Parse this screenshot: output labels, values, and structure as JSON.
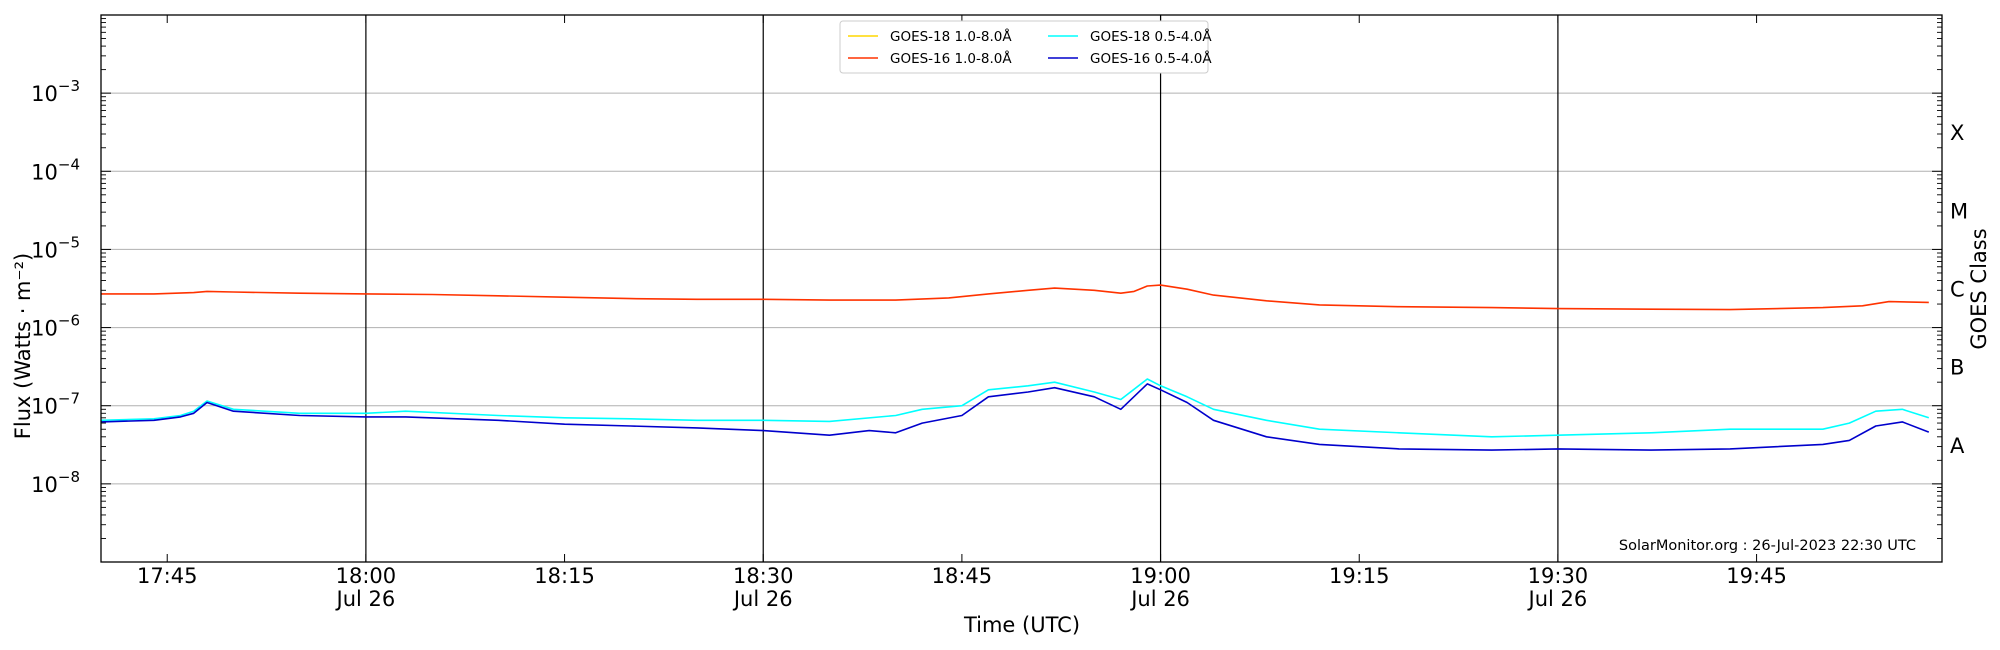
{
  "chart_data": {
    "type": "line",
    "title": "",
    "xlabel": "Time (UTC)",
    "ylabel": "Flux (Watts · m⁻²)",
    "y_right_label": "GOES Class",
    "y_scale": "log",
    "ylim": [
      1e-09,
      0.01
    ],
    "xlim": [
      "2023-07-26 17:40",
      "2023-07-26 19:59"
    ],
    "grid": "horizontal at y decades",
    "legend_position": "top-center",
    "x_ticks": [
      {
        "value": "2023-07-26 17:45",
        "line1": "17:45",
        "line2": ""
      },
      {
        "value": "2023-07-26 18:00",
        "line1": "18:00",
        "line2": "Jul 26"
      },
      {
        "value": "2023-07-26 18:15",
        "line1": "18:15",
        "line2": ""
      },
      {
        "value": "2023-07-26 18:30",
        "line1": "18:30",
        "line2": "Jul 26"
      },
      {
        "value": "2023-07-26 18:45",
        "line1": "18:45",
        "line2": ""
      },
      {
        "value": "2023-07-26 19:00",
        "line1": "19:00",
        "line2": "Jul 26"
      },
      {
        "value": "2023-07-26 19:15",
        "line1": "19:15",
        "line2": ""
      },
      {
        "value": "2023-07-26 19:30",
        "line1": "19:30",
        "line2": "Jul 26"
      },
      {
        "value": "2023-07-26 19:45",
        "line1": "19:45",
        "line2": ""
      }
    ],
    "vertical_lines": [
      "2023-07-26 18:00",
      "2023-07-26 18:30",
      "2023-07-26 19:00",
      "2023-07-26 19:30"
    ],
    "y_ticks": [
      {
        "value": 1e-08,
        "base": "10",
        "exp": "−8"
      },
      {
        "value": 1e-07,
        "base": "10",
        "exp": "−7"
      },
      {
        "value": 1e-06,
        "base": "10",
        "exp": "−6"
      },
      {
        "value": 1e-05,
        "base": "10",
        "exp": "−5"
      },
      {
        "value": 0.0001,
        "base": "10",
        "exp": "−4"
      },
      {
        "value": 0.001,
        "base": "10",
        "exp": "−3"
      }
    ],
    "goes_classes": [
      {
        "label": "A",
        "value": 3.16e-08
      },
      {
        "label": "B",
        "value": 3.16e-07
      },
      {
        "label": "C",
        "value": 3.16e-06
      },
      {
        "label": "M",
        "value": 3.16e-05
      },
      {
        "label": "X",
        "value": 0.000316
      }
    ],
    "annotation": "SolarMonitor.org : 26-Jul-2023 22:30 UTC",
    "series": [
      {
        "name": "GOES-18 1.0-8.0Å",
        "color": "#ffd700",
        "x": [],
        "y": []
      },
      {
        "name": "GOES-16 1.0-8.0Å",
        "color": "#ff3300",
        "x": [
          "2023-07-26 17:40",
          "2023-07-26 17:44",
          "2023-07-26 17:47",
          "2023-07-26 17:48",
          "2023-07-26 17:50",
          "2023-07-26 17:55",
          "2023-07-26 18:00",
          "2023-07-26 18:05",
          "2023-07-26 18:10",
          "2023-07-26 18:15",
          "2023-07-26 18:20",
          "2023-07-26 18:25",
          "2023-07-26 18:30",
          "2023-07-26 18:35",
          "2023-07-26 18:40",
          "2023-07-26 18:44",
          "2023-07-26 18:47",
          "2023-07-26 18:50",
          "2023-07-26 18:52",
          "2023-07-26 18:55",
          "2023-07-26 18:57",
          "2023-07-26 18:58",
          "2023-07-26 18:59",
          "2023-07-26 19:00",
          "2023-07-26 19:02",
          "2023-07-26 19:04",
          "2023-07-26 19:08",
          "2023-07-26 19:12",
          "2023-07-26 19:18",
          "2023-07-26 19:25",
          "2023-07-26 19:30",
          "2023-07-26 19:37",
          "2023-07-26 19:43",
          "2023-07-26 19:50",
          "2023-07-26 19:53",
          "2023-07-26 19:55",
          "2023-07-26 19:58"
        ],
        "y": [
          2.7e-06,
          2.7e-06,
          2.8e-06,
          2.9e-06,
          2.85e-06,
          2.75e-06,
          2.7e-06,
          2.65e-06,
          2.55e-06,
          2.45e-06,
          2.35e-06,
          2.3e-06,
          2.3e-06,
          2.25e-06,
          2.25e-06,
          2.4e-06,
          2.7e-06,
          3e-06,
          3.2e-06,
          3e-06,
          2.75e-06,
          2.9e-06,
          3.4e-06,
          3.5e-06,
          3.1e-06,
          2.6e-06,
          2.2e-06,
          1.95e-06,
          1.85e-06,
          1.8e-06,
          1.75e-06,
          1.72e-06,
          1.7e-06,
          1.8e-06,
          1.9e-06,
          2.15e-06,
          2.1e-06
        ]
      },
      {
        "name": "GOES-18 0.5-4.0Å",
        "color": "#00ffff",
        "x": [
          "2023-07-26 17:40",
          "2023-07-26 17:44",
          "2023-07-26 17:46",
          "2023-07-26 17:47",
          "2023-07-26 17:48",
          "2023-07-26 17:50",
          "2023-07-26 17:55",
          "2023-07-26 18:00",
          "2023-07-26 18:03",
          "2023-07-26 18:10",
          "2023-07-26 18:15",
          "2023-07-26 18:20",
          "2023-07-26 18:25",
          "2023-07-26 18:30",
          "2023-07-26 18:35",
          "2023-07-26 18:40",
          "2023-07-26 18:42",
          "2023-07-26 18:45",
          "2023-07-26 18:47",
          "2023-07-26 18:50",
          "2023-07-26 18:52",
          "2023-07-26 18:55",
          "2023-07-26 18:57",
          "2023-07-26 18:59",
          "2023-07-26 19:00",
          "2023-07-26 19:02",
          "2023-07-26 19:04",
          "2023-07-26 19:08",
          "2023-07-26 19:12",
          "2023-07-26 19:18",
          "2023-07-26 19:25",
          "2023-07-26 19:30",
          "2023-07-26 19:37",
          "2023-07-26 19:43",
          "2023-07-26 19:50",
          "2023-07-26 19:52",
          "2023-07-26 19:54",
          "2023-07-26 19:56",
          "2023-07-26 19:58"
        ],
        "y": [
          6.5e-08,
          6.8e-08,
          7.5e-08,
          8.5e-08,
          1.15e-07,
          9e-08,
          8e-08,
          8e-08,
          8.5e-08,
          7.5e-08,
          7e-08,
          6.8e-08,
          6.5e-08,
          6.5e-08,
          6.3e-08,
          7.5e-08,
          9e-08,
          1e-07,
          1.6e-07,
          1.8e-07,
          2e-07,
          1.5e-07,
          1.2e-07,
          2.2e-07,
          1.8e-07,
          1.3e-07,
          9e-08,
          6.5e-08,
          5e-08,
          4.5e-08,
          4e-08,
          4.2e-08,
          4.5e-08,
          5e-08,
          5e-08,
          6e-08,
          8.5e-08,
          9e-08,
          7e-08
        ]
      },
      {
        "name": "GOES-16 0.5-4.0Å",
        "color": "#0000cc",
        "x": [
          "2023-07-26 17:40",
          "2023-07-26 17:44",
          "2023-07-26 17:46",
          "2023-07-26 17:47",
          "2023-07-26 17:48",
          "2023-07-26 17:50",
          "2023-07-26 17:55",
          "2023-07-26 18:00",
          "2023-07-26 18:03",
          "2023-07-26 18:10",
          "2023-07-26 18:15",
          "2023-07-26 18:20",
          "2023-07-26 18:25",
          "2023-07-26 18:30",
          "2023-07-26 18:35",
          "2023-07-26 18:38",
          "2023-07-26 18:40",
          "2023-07-26 18:42",
          "2023-07-26 18:45",
          "2023-07-26 18:47",
          "2023-07-26 18:50",
          "2023-07-26 18:52",
          "2023-07-26 18:55",
          "2023-07-26 18:57",
          "2023-07-26 18:59",
          "2023-07-26 19:00",
          "2023-07-26 19:02",
          "2023-07-26 19:04",
          "2023-07-26 19:08",
          "2023-07-26 19:12",
          "2023-07-26 19:18",
          "2023-07-26 19:25",
          "2023-07-26 19:30",
          "2023-07-26 19:37",
          "2023-07-26 19:43",
          "2023-07-26 19:50",
          "2023-07-26 19:52",
          "2023-07-26 19:54",
          "2023-07-26 19:56",
          "2023-07-26 19:58"
        ],
        "y": [
          6.2e-08,
          6.5e-08,
          7.2e-08,
          8e-08,
          1.1e-07,
          8.5e-08,
          7.5e-08,
          7.2e-08,
          7.2e-08,
          6.5e-08,
          5.8e-08,
          5.5e-08,
          5.2e-08,
          4.8e-08,
          4.2e-08,
          4.8e-08,
          4.5e-08,
          6e-08,
          7.5e-08,
          1.3e-07,
          1.5e-07,
          1.7e-07,
          1.3e-07,
          9e-08,
          1.9e-07,
          1.6e-07,
          1.1e-07,
          6.5e-08,
          4e-08,
          3.2e-08,
          2.8e-08,
          2.7e-08,
          2.8e-08,
          2.7e-08,
          2.8e-08,
          3.2e-08,
          3.6e-08,
          5.5e-08,
          6.2e-08,
          4.6e-08
        ]
      }
    ]
  }
}
